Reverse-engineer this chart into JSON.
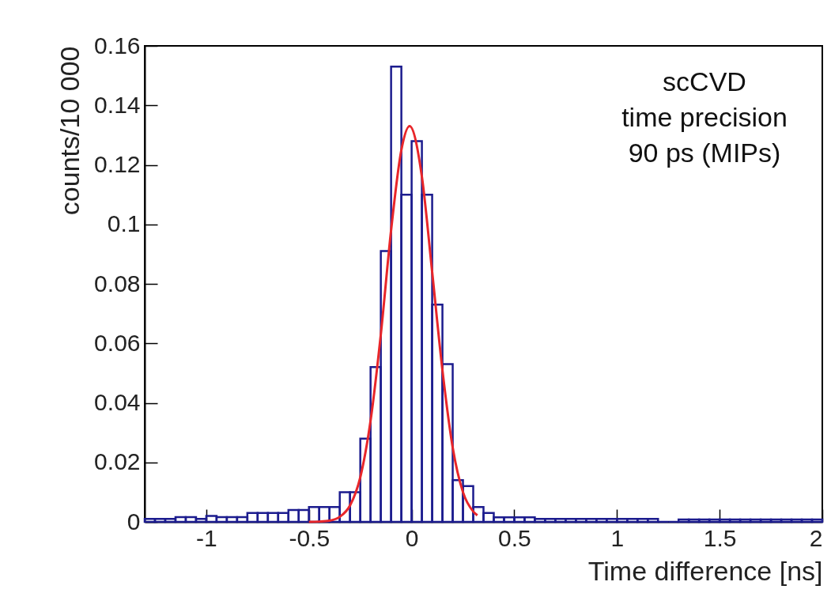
{
  "chart_data": {
    "type": "histogram",
    "xlabel": "Time difference [ns]",
    "ylabel": "counts/10 000",
    "annotations": [
      "scCVD",
      "time precision",
      "90 ps (MIPs)"
    ],
    "bins": [
      -1.3,
      -1.25,
      -1.2,
      -1.15,
      -1.1,
      -1.05,
      -1.0,
      -0.95,
      -0.9,
      -0.85,
      -0.8,
      -0.75,
      -0.7,
      -0.65,
      -0.6,
      -0.55,
      -0.5,
      -0.45,
      -0.4,
      -0.35,
      -0.3,
      -0.25,
      -0.2,
      -0.15,
      -0.1,
      -0.05,
      0,
      0.05,
      0.1,
      0.15,
      0.2,
      0.25,
      0.3,
      0.35,
      0.4,
      0.45,
      0.5,
      0.55,
      0.6,
      0.65,
      0.7,
      0.75,
      0.8,
      0.85,
      0.9,
      0.95,
      1.0,
      1.05,
      1.1,
      1.15,
      1.2,
      1.25,
      1.3,
      1.35,
      1.4,
      1.45,
      1.5,
      1.55,
      1.6,
      1.65,
      1.7,
      1.75,
      1.8,
      1.85,
      1.9,
      1.95,
      2.0
    ],
    "values": [
      0.001,
      0.001,
      0.001,
      0.0016,
      0.0016,
      0.001,
      0.002,
      0.0016,
      0.0016,
      0.0016,
      0.003,
      0.003,
      0.003,
      0.003,
      0.004,
      0.004,
      0.005,
      0.005,
      0.005,
      0.01,
      0.01,
      0.028,
      0.052,
      0.091,
      0.153,
      0.11,
      0.128,
      0.11,
      0.073,
      0.053,
      0.014,
      0.012,
      0.005,
      0.003,
      0.0015,
      0.0015,
      0.0015,
      0.0015,
      0.001,
      0.001,
      0.001,
      0.001,
      0.001,
      0.001,
      0.001,
      0.001,
      0.001,
      0.001,
      0.001,
      0.001,
      0,
      0,
      0.0008,
      0.0008,
      0.0008,
      0.0008,
      0.0008,
      0.0008,
      0.0008,
      0.0008,
      0.0008,
      0.0008,
      0.0008,
      0.0008,
      0.0008,
      0.0008
    ],
    "color": "#1c1c8e",
    "series": [
      {
        "type": "line",
        "color": "#e8262a",
        "x": [
          -0.5,
          -0.45,
          -0.4,
          -0.35,
          -0.3,
          -0.25,
          -0.2,
          -0.15,
          -0.1,
          -0.05,
          -0.01,
          0.05,
          0.1,
          0.15,
          0.2,
          0.25,
          0.3,
          0.32
        ],
        "values": [
          0,
          0.0001,
          0.0004,
          0.0017,
          0.0055,
          0.015,
          0.034,
          0.063,
          0.098,
          0.125,
          0.133,
          0.116,
          0.084,
          0.051,
          0.025,
          0.01,
          0.0035,
          0.0022
        ]
      }
    ],
    "xlim": [
      -1.3,
      2
    ],
    "ylim": [
      0,
      0.16
    ],
    "xticks": [
      -1,
      -0.5,
      0,
      0.5,
      1,
      1.5,
      2
    ],
    "yticks": [
      0,
      0.02,
      0.04,
      0.06,
      0.08,
      0.1,
      0.12,
      0.14,
      0.16
    ]
  }
}
